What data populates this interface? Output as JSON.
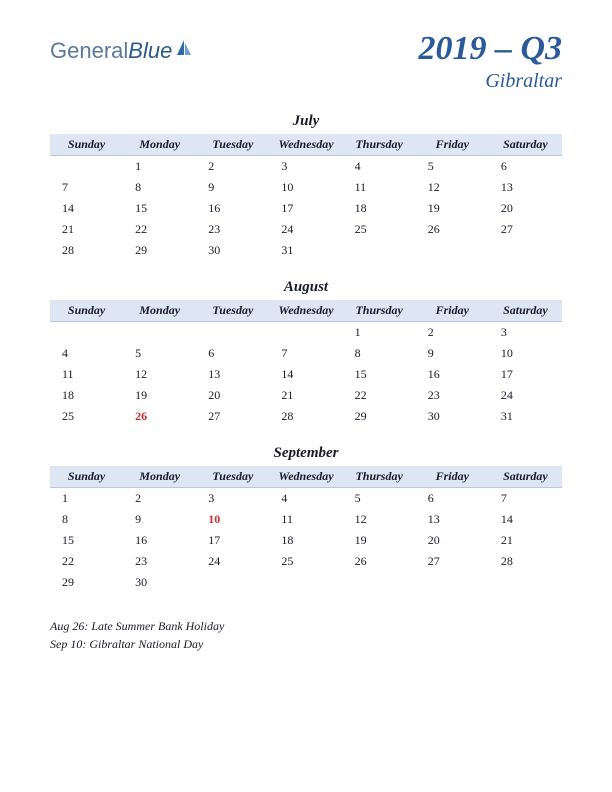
{
  "logo": {
    "part1": "General",
    "part2": "Blue"
  },
  "title": "2019 – Q3",
  "region": "Gibraltar",
  "weekdays": [
    "Sunday",
    "Monday",
    "Tuesday",
    "Wednesday",
    "Thursday",
    "Friday",
    "Saturday"
  ],
  "colors": {
    "header_bg": "#dde6f2",
    "title_color": "#2a5a9a",
    "text_color": "#1a1a2a",
    "holiday_color": "#c03030",
    "background": "#ffffff"
  },
  "fonts": {
    "title_size": 34,
    "region_size": 20,
    "month_size": 15,
    "weekday_size": 12,
    "day_size": 12,
    "note_size": 12
  },
  "months": [
    {
      "name": "July",
      "weeks": [
        [
          "",
          "1",
          "2",
          "3",
          "4",
          "5",
          "6"
        ],
        [
          "7",
          "8",
          "9",
          "10",
          "11",
          "12",
          "13"
        ],
        [
          "14",
          "15",
          "16",
          "17",
          "18",
          "19",
          "20"
        ],
        [
          "21",
          "22",
          "23",
          "24",
          "25",
          "26",
          "27"
        ],
        [
          "28",
          "29",
          "30",
          "31",
          "",
          "",
          ""
        ]
      ],
      "holidays": []
    },
    {
      "name": "August",
      "weeks": [
        [
          "",
          "",
          "",
          "",
          "1",
          "2",
          "3"
        ],
        [
          "4",
          "5",
          "6",
          "7",
          "8",
          "9",
          "10"
        ],
        [
          "11",
          "12",
          "13",
          "14",
          "15",
          "16",
          "17"
        ],
        [
          "18",
          "19",
          "20",
          "21",
          "22",
          "23",
          "24"
        ],
        [
          "25",
          "26",
          "27",
          "28",
          "29",
          "30",
          "31"
        ]
      ],
      "holidays": [
        "26"
      ]
    },
    {
      "name": "September",
      "weeks": [
        [
          "1",
          "2",
          "3",
          "4",
          "5",
          "6",
          "7"
        ],
        [
          "8",
          "9",
          "10",
          "11",
          "12",
          "13",
          "14"
        ],
        [
          "15",
          "16",
          "17",
          "18",
          "19",
          "20",
          "21"
        ],
        [
          "22",
          "23",
          "24",
          "25",
          "26",
          "27",
          "28"
        ],
        [
          "29",
          "30",
          "",
          "",
          "",
          "",
          ""
        ]
      ],
      "holidays": [
        "10"
      ]
    }
  ],
  "notes": [
    "Aug 26: Late Summer Bank Holiday",
    "Sep 10: Gibraltar National Day"
  ]
}
